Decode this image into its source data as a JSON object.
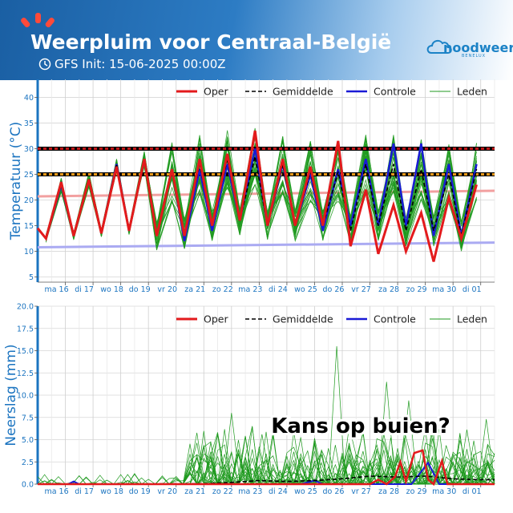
{
  "header": {
    "title": "Weerpluim voor  Centraal-België",
    "init": "GFS Init: 15-06-2025 00:00Z",
    "logo_main": "noodweer",
    "logo_sub": "BENELUX"
  },
  "colors": {
    "oper": "#e31a1c",
    "mean": "#000000",
    "control": "#1a1ad6",
    "members": "#1f9a1f",
    "axis": "#1b74c0",
    "threshold_high": "#c0181a",
    "threshold_low": "#e89a1b",
    "climate_max": "#f2a0a0",
    "climate_min": "#aaaaf2"
  },
  "legend": [
    "Oper",
    "Gemiddelde",
    "Controle",
    "Leden"
  ],
  "annotation": "Kans op buien?",
  "chart_data": [
    {
      "type": "line",
      "ylabel": "Temperatuur (°C)",
      "ylim": [
        4,
        43.5
      ],
      "yticks": [
        5,
        10,
        15,
        20,
        25,
        30,
        35,
        40
      ],
      "xlim": [
        0,
        16.5
      ],
      "x_tick_labels": [
        "ma 16",
        "di 17",
        "wo 18",
        "do 19",
        "vr 20",
        "za 21",
        "zo 22",
        "ma 23",
        "di 24",
        "wo 25",
        "do 26",
        "vr 27",
        "za 28",
        "zo 29",
        "ma 30",
        "di 01"
      ],
      "x_tick_positions": [
        1,
        2,
        3,
        4,
        5,
        6,
        7,
        8,
        9,
        10,
        11,
        12,
        13,
        14,
        15,
        16
      ],
      "grid": true,
      "legend_position": "top-right",
      "thresholds": [
        30,
        25
      ],
      "climate_max": {
        "x": [
          0,
          16.5
        ],
        "y": [
          20.7,
          21.8
        ]
      },
      "climate_min": {
        "x": [
          0,
          16.5
        ],
        "y": [
          10.8,
          11.7
        ]
      },
      "series": [
        {
          "name": "Oper",
          "min": [
            12.5,
            13,
            13.5,
            14,
            13,
            13,
            15,
            16,
            15,
            15,
            15,
            11,
            9.5,
            10,
            8,
            12.5
          ],
          "max": [
            23.5,
            24,
            26.5,
            28,
            26,
            28,
            29,
            33.5,
            28,
            26.5,
            31.5,
            22,
            19,
            17.5,
            20.5,
            23
          ]
        },
        {
          "name": "Gemiddelde",
          "min": [
            12.5,
            13,
            13.5,
            14,
            13,
            13.5,
            15,
            16,
            15,
            15,
            15,
            14,
            15,
            14,
            14,
            13
          ],
          "max": [
            23,
            24,
            27,
            28,
            25.5,
            27,
            28,
            28.5,
            27,
            25.5,
            25.5,
            27,
            27,
            26,
            25,
            26
          ]
        },
        {
          "name": "Controle",
          "min": [
            12.5,
            13,
            13.5,
            14,
            13,
            12,
            14,
            16,
            15,
            15,
            14,
            15,
            15,
            15,
            13,
            13
          ],
          "max": [
            23,
            24,
            27,
            28,
            26,
            26,
            27,
            30,
            27,
            25,
            26,
            28,
            31,
            31,
            27,
            27
          ]
        }
      ]
    },
    {
      "type": "line",
      "ylabel": "Neerslag (mm)",
      "ylim": [
        0,
        20
      ],
      "yticks": [
        0.0,
        2.5,
        5.0,
        7.5,
        10.0,
        12.5,
        15.0,
        17.5,
        20.0
      ],
      "xlim": [
        0,
        16.5
      ],
      "x_tick_labels": [
        "ma 16",
        "di 17",
        "wo 18",
        "do 19",
        "vr 20",
        "za 21",
        "zo 22",
        "ma 23",
        "di 24",
        "wo 25",
        "do 26",
        "vr 27",
        "za 28",
        "zo 29",
        "ma 30",
        "di 01"
      ],
      "grid": true,
      "legend_position": "top-right",
      "members_max_peak": 15.5,
      "series": [
        {
          "name": "Oper",
          "x": [
            0,
            12,
            12.3,
            12.6,
            12.9,
            13.1,
            13.3,
            13.6,
            13.9,
            14.1,
            14.3,
            14.6,
            14.8,
            15.1,
            16.5
          ],
          "y": [
            0,
            0,
            0.5,
            0,
            0.8,
            2.5,
            0.3,
            3.5,
            3.8,
            0.5,
            0,
            2.6,
            0,
            0,
            0
          ]
        },
        {
          "name": "Gemiddelde",
          "x": [
            0,
            6,
            7,
            8,
            9,
            10,
            11,
            12,
            13,
            14,
            15,
            16,
            16.5
          ],
          "y": [
            0,
            0.05,
            0.2,
            0.4,
            0.3,
            0.4,
            0.6,
            0.9,
            0.8,
            0.9,
            0.6,
            0.5,
            0.5
          ]
        },
        {
          "name": "Controle",
          "x": [
            0,
            1.1,
            1.3,
            1.5,
            9.5,
            10,
            10.3,
            13.5,
            14.1,
            14.5,
            16.5
          ],
          "y": [
            0,
            0,
            0.3,
            0,
            0,
            0.4,
            0,
            0,
            2.4,
            0,
            0
          ]
        }
      ]
    }
  ]
}
